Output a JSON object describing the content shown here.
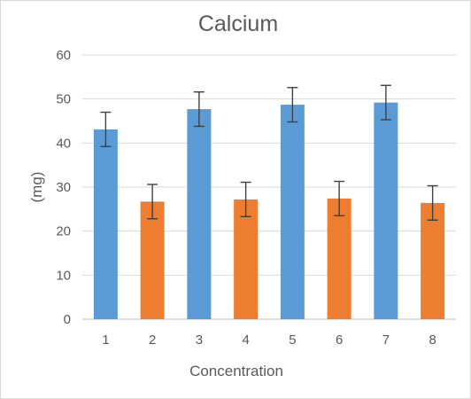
{
  "chart_data": {
    "type": "bar",
    "title": "Calcium",
    "xlabel": "Concentration",
    "ylabel": "(mg)",
    "categories": [
      "1",
      "2",
      "3",
      "4",
      "5",
      "6",
      "7",
      "8"
    ],
    "values": [
      43.1,
      26.7,
      47.7,
      27.2,
      48.7,
      27.4,
      49.2,
      26.4
    ],
    "error_bars": [
      3.9,
      3.9,
      3.9,
      3.9,
      3.9,
      3.9,
      3.9,
      3.9
    ],
    "ylim": [
      0,
      60
    ],
    "yticks": [
      "0",
      "10",
      "20",
      "30",
      "40",
      "50",
      "60"
    ],
    "grid": true,
    "bar_colors": [
      "#5b9bd5",
      "#ed7d31",
      "#5b9bd5",
      "#ed7d31",
      "#5b9bd5",
      "#ed7d31",
      "#5b9bd5",
      "#ed7d31"
    ],
    "error_bar_color": "#404040"
  }
}
